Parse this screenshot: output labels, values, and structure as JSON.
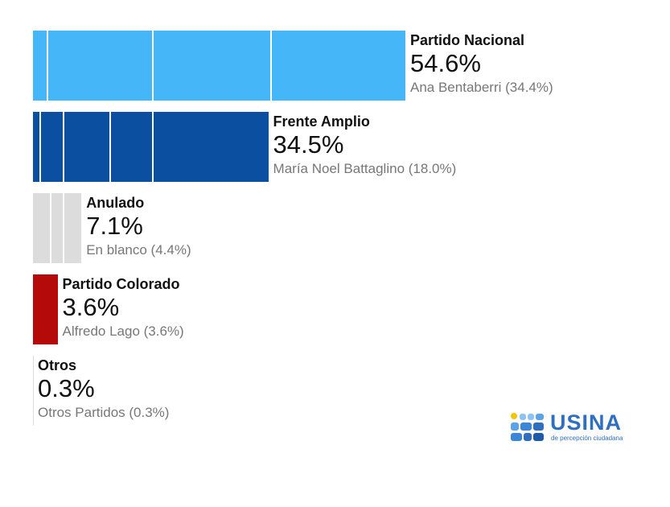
{
  "chart_data": {
    "type": "bar",
    "orientation": "horizontal",
    "categories": [
      "Partido Nacional",
      "Frente Amplio",
      "Anulado",
      "Partido Colorado",
      "Otros"
    ],
    "values": [
      54.6,
      34.5,
      7.1,
      3.6,
      0.3
    ],
    "value_labels": [
      "54.6%",
      "34.5%",
      "7.1%",
      "3.6%",
      "0.3%"
    ],
    "sublabels": [
      "Ana Bentaberri (34.4%)",
      "María Noel Battaglino (18.0%)",
      "En blanco (4.4%)",
      "Alfredo Lago (3.6%)",
      "Otros Partidos (0.3%)"
    ],
    "segments": [
      [
        2.1,
        17.6,
        34.9
      ],
      [
        1.1,
        4.5,
        11.3,
        17.6
      ],
      [
        2.6,
        4.5
      ],
      [
        3.6
      ],
      [
        0.3
      ]
    ],
    "colors": [
      "#45b6f7",
      "#0a4fa0",
      "#dcdcdc",
      "#b40a0a",
      "#dddddd"
    ],
    "xlim": [
      0,
      54.6
    ],
    "grid": false,
    "legend": "none"
  },
  "logo": {
    "brand": "USINA",
    "tagline": "de percepción ciudadana",
    "color": "#2f6fbf",
    "accent": "#f5c400"
  }
}
